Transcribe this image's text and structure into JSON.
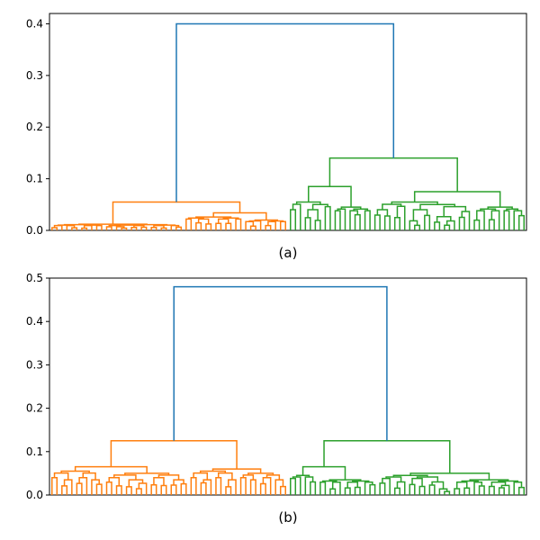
{
  "chart_data": [
    {
      "type": "dendrogram",
      "caption": "(a)",
      "ylim": [
        0,
        0.42
      ],
      "yticks": [
        "0.0",
        "0.1",
        "0.2",
        "0.3",
        "0.4"
      ],
      "ytick_values": [
        0.0,
        0.1,
        0.2,
        0.3,
        0.4
      ],
      "grid": false,
      "colors": {
        "root": "#1f77b4",
        "cluster1": "#ff7f0e",
        "cluster2": "#2ca02c"
      },
      "root_height": 0.4,
      "clusters": [
        {
          "name": "",
          "color": "#ff7f0e",
          "leaves": 48,
          "top_height": 0.055,
          "merge_heights": [
            0.018,
            0.012,
            0.034,
            0.026,
            0.02,
            0.04,
            0.03,
            0.022,
            0.025
          ]
        },
        {
          "name": "",
          "color": "#2ca02c",
          "leaves": 48,
          "top_height": 0.14,
          "merge_heights": [
            0.11,
            0.085,
            0.075,
            0.055,
            0.045,
            0.065,
            0.05,
            0.04,
            0.06
          ]
        }
      ]
    },
    {
      "type": "dendrogram",
      "caption": "(b)",
      "ylim": [
        0,
        0.5
      ],
      "yticks": [
        "0.0",
        "0.1",
        "0.2",
        "0.3",
        "0.4",
        "0.5"
      ],
      "ytick_values": [
        0.0,
        0.1,
        0.2,
        0.3,
        0.4,
        0.5
      ],
      "grid": false,
      "colors": {
        "root": "#1f77b4",
        "cluster1": "#ff7f0e",
        "cluster2": "#2ca02c"
      },
      "root_height": 0.48,
      "clusters": [
        {
          "name": "",
          "color": "#ff7f0e",
          "leaves": 48,
          "top_height": 0.125,
          "merge_heights": [
            0.08,
            0.065,
            0.06,
            0.055,
            0.05,
            0.06,
            0.055,
            0.04,
            0.035
          ]
        },
        {
          "name": "",
          "color": "#2ca02c",
          "leaves": 48,
          "top_height": 0.125,
          "merge_heights": [
            0.09,
            0.065,
            0.05,
            0.045,
            0.035,
            0.065,
            0.045,
            0.04,
            0.03
          ]
        }
      ]
    }
  ]
}
